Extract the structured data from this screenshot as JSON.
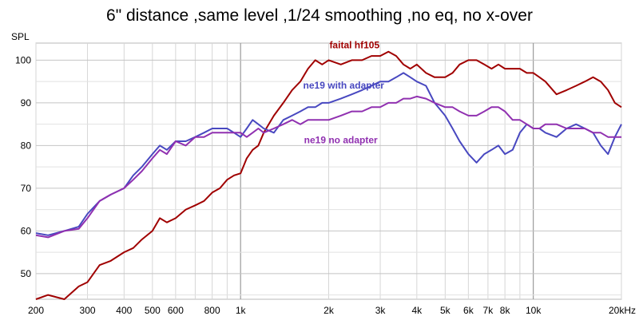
{
  "chart_data": {
    "type": "line",
    "title": "6\" distance ,same level ,1/24 smoothing ,no eq, no x-over",
    "ylabel": "SPL",
    "xlabel": "",
    "x_scale": "log",
    "xlim": [
      200,
      20000
    ],
    "ylim": [
      44,
      104
    ],
    "x_ticks": [
      {
        "value": 200,
        "label": "200"
      },
      {
        "value": 300,
        "label": "300"
      },
      {
        "value": 400,
        "label": "400"
      },
      {
        "value": 500,
        "label": "500"
      },
      {
        "value": 600,
        "label": "600"
      },
      {
        "value": 800,
        "label": "800"
      },
      {
        "value": 1000,
        "label": "1k"
      },
      {
        "value": 2000,
        "label": "2k"
      },
      {
        "value": 3000,
        "label": "3k"
      },
      {
        "value": 4000,
        "label": "4k"
      },
      {
        "value": 5000,
        "label": "5k"
      },
      {
        "value": 6000,
        "label": "6k"
      },
      {
        "value": 7000,
        "label": "7k"
      },
      {
        "value": 8000,
        "label": "8k"
      },
      {
        "value": 10000,
        "label": "10k"
      },
      {
        "value": 20000,
        "label": "20kHz"
      }
    ],
    "y_ticks": [
      {
        "value": 50,
        "label": "50"
      },
      {
        "value": 60,
        "label": "60"
      },
      {
        "value": 70,
        "label": "70"
      },
      {
        "value": 80,
        "label": "80"
      },
      {
        "value": 90,
        "label": "90"
      },
      {
        "value": 100,
        "label": "100"
      }
    ],
    "grid": true,
    "series": [
      {
        "name": "faital hf105",
        "color": "#a00000",
        "x": [
          200,
          220,
          250,
          280,
          300,
          330,
          360,
          400,
          430,
          460,
          500,
          530,
          560,
          600,
          650,
          700,
          750,
          800,
          850,
          900,
          950,
          1000,
          1050,
          1100,
          1150,
          1200,
          1300,
          1400,
          1500,
          1600,
          1700,
          1800,
          1900,
          2000,
          2200,
          2400,
          2600,
          2800,
          3000,
          3200,
          3400,
          3600,
          3800,
          4000,
          4300,
          4600,
          5000,
          5300,
          5600,
          6000,
          6400,
          6800,
          7200,
          7600,
          8000,
          8500,
          9000,
          9500,
          10000,
          10500,
          11000,
          12000,
          13000,
          14000,
          15000,
          16000,
          17000,
          18000,
          19000,
          20000
        ],
        "values": [
          44,
          45,
          44,
          47,
          48,
          52,
          53,
          55,
          56,
          58,
          60,
          63,
          62,
          63,
          65,
          66,
          67,
          69,
          70,
          72,
          73,
          73.5,
          77,
          79,
          80,
          83,
          87,
          90,
          93,
          95,
          98,
          100,
          99,
          100,
          99,
          100,
          100,
          101,
          101,
          102,
          101,
          99,
          98,
          99,
          97,
          96,
          96,
          97,
          99,
          100,
          100,
          99,
          98,
          99,
          98,
          98,
          98,
          97,
          97,
          96,
          95,
          92,
          93,
          94,
          95,
          96,
          95,
          93,
          90,
          89
        ]
      },
      {
        "name": "ne19 with adapter",
        "color": "#4848c0",
        "x": [
          200,
          220,
          250,
          280,
          300,
          330,
          360,
          400,
          430,
          460,
          500,
          530,
          560,
          600,
          650,
          700,
          750,
          800,
          850,
          900,
          950,
          1000,
          1050,
          1100,
          1150,
          1200,
          1300,
          1400,
          1500,
          1600,
          1700,
          1800,
          1900,
          2000,
          2200,
          2400,
          2600,
          2800,
          3000,
          3200,
          3400,
          3600,
          3800,
          4000,
          4300,
          4600,
          5000,
          5300,
          5600,
          6000,
          6400,
          6800,
          7200,
          7600,
          8000,
          8500,
          9000,
          9500,
          10000,
          10500,
          11000,
          12000,
          13000,
          14000,
          15000,
          16000,
          17000,
          18000,
          19000,
          20000
        ],
        "values": [
          59.5,
          59,
          60,
          61,
          64,
          67,
          68.5,
          70,
          73,
          75,
          78,
          80,
          79,
          81,
          81,
          82,
          83,
          84,
          84,
          84,
          83,
          82,
          84,
          86,
          85,
          84,
          83,
          86,
          87,
          88,
          89,
          89,
          90,
          90,
          91,
          92,
          93,
          94,
          95,
          95,
          96,
          97,
          96,
          95,
          94,
          90,
          87,
          84,
          81,
          78,
          76,
          78,
          79,
          80,
          78,
          79,
          83,
          85,
          84,
          84,
          83,
          82,
          84,
          85,
          84,
          83,
          80,
          78,
          82,
          85
        ]
      },
      {
        "name": "ne19 no adapter",
        "color": "#9030b0",
        "x": [
          200,
          220,
          250,
          280,
          300,
          330,
          360,
          400,
          430,
          460,
          500,
          530,
          560,
          600,
          650,
          700,
          750,
          800,
          850,
          900,
          950,
          1000,
          1050,
          1100,
          1150,
          1200,
          1300,
          1400,
          1500,
          1600,
          1700,
          1800,
          1900,
          2000,
          2200,
          2400,
          2600,
          2800,
          3000,
          3200,
          3400,
          3600,
          3800,
          4000,
          4300,
          4600,
          5000,
          5300,
          5600,
          6000,
          6400,
          6800,
          7200,
          7600,
          8000,
          8500,
          9000,
          9500,
          10000,
          10500,
          11000,
          12000,
          13000,
          14000,
          15000,
          16000,
          17000,
          18000,
          19000,
          20000
        ],
        "values": [
          59,
          58.5,
          60,
          60.5,
          63,
          67,
          68.5,
          70,
          72,
          74,
          77,
          79,
          78,
          81,
          80,
          82,
          82,
          83,
          83,
          83,
          83,
          83,
          82,
          83,
          84,
          83,
          84,
          85,
          86,
          85,
          86,
          86,
          86,
          86,
          87,
          88,
          88,
          89,
          89,
          90,
          90,
          91,
          91,
          91.5,
          91,
          90,
          89,
          89,
          88,
          87,
          87,
          88,
          89,
          89,
          88,
          86,
          86,
          85,
          84,
          84,
          85,
          85,
          84,
          84,
          84,
          83,
          83,
          82,
          82,
          82
        ]
      }
    ],
    "annotations": [
      {
        "text": "faital hf105",
        "series": 0,
        "at_x": 2450,
        "at_y": 102.8
      },
      {
        "text": "ne19 with adapter",
        "series": 1,
        "at_x": 2250,
        "at_y": 93.3
      },
      {
        "text": "ne19 no adapter",
        "series": 2,
        "at_x": 2200,
        "at_y": 80.5
      }
    ]
  }
}
